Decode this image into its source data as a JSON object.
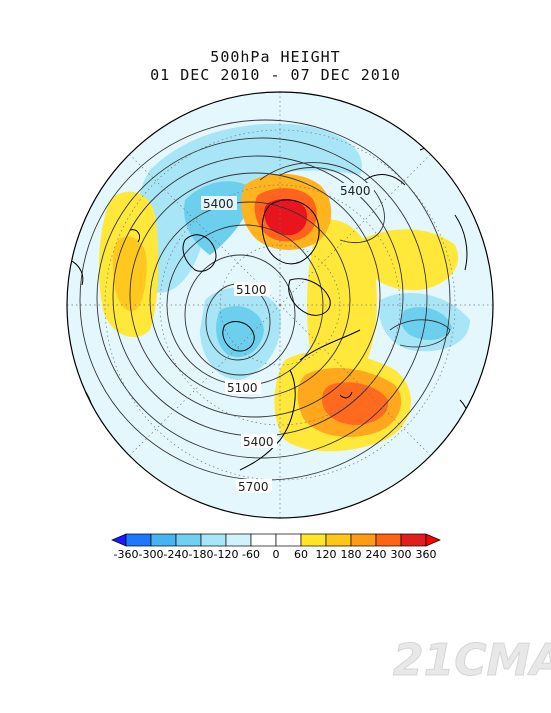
{
  "title": {
    "line1": "500hPa HEIGHT",
    "line2": "01 DEC 2010 - 07 DEC 2010"
  },
  "contour_labels": [
    "5400",
    "5400",
    "5100",
    "5100",
    "5400",
    "5700"
  ],
  "colorbar": {
    "ticks": [
      "-360",
      "-300",
      "-240",
      "-180",
      "-120",
      "-60",
      "0",
      "60",
      "120",
      "180",
      "240",
      "300",
      "360"
    ],
    "colors": [
      "#1a1aff",
      "#1e78ff",
      "#46b4f0",
      "#6fd0f2",
      "#a6e6f8",
      "#d2f2fb",
      "#ffffff",
      "#ffffff",
      "#ffe628",
      "#ffc814",
      "#ff9a14",
      "#ff6414",
      "#e11e1e",
      "#ff0000"
    ]
  },
  "watermark": "21CMA",
  "colors": {
    "positive_strong": "#e11e1e",
    "positive_mid": "#ff8c14",
    "positive_weak": "#fff03c",
    "negative_weak": "#aee8f6",
    "negative_mid": "#6fd0f2",
    "background_anom": "#dff6fc"
  }
}
